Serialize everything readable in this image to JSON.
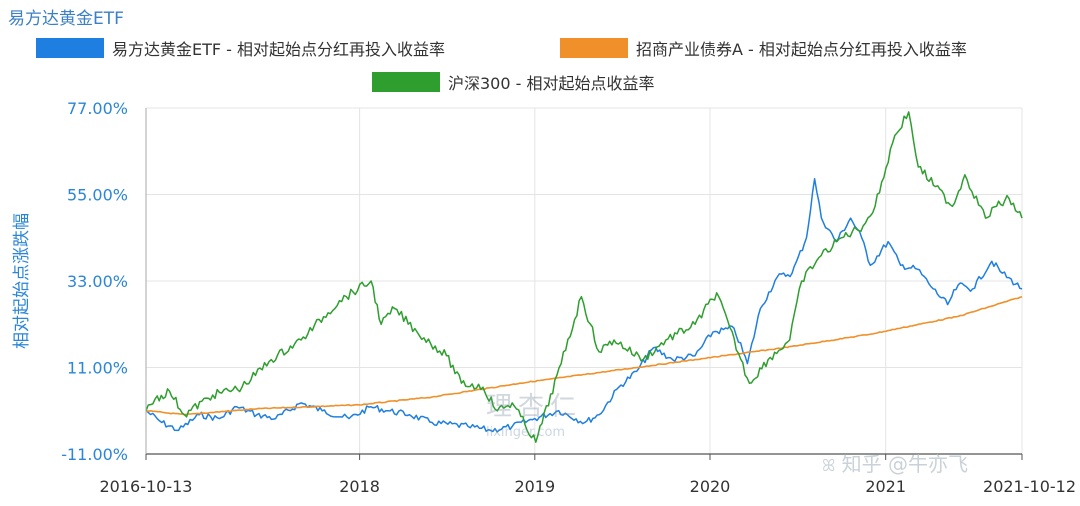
{
  "chart_data": {
    "type": "line",
    "title": "易方达黄金ETF",
    "ylabel": "相对起始点涨跌幅",
    "xlabel": "",
    "x_start": "2016-10-13",
    "x_end": "2021-10-12",
    "x_ticks": [
      "2016-10-13",
      "2018",
      "2019",
      "2020",
      "2021",
      "2021-10-12"
    ],
    "y_ticks": [
      "77.00%",
      "55.00%",
      "33.00%",
      "11.00%",
      "-11.00%"
    ],
    "ylim": [
      -11,
      77
    ],
    "grid": true,
    "legend": "top-center",
    "series": [
      {
        "name": "易方达黄金ETF - 相对起始点分红再投入收益率",
        "color": "#1f7fe0",
        "points": [
          [
            "2016-10-13",
            0
          ],
          [
            "2016-11-15",
            -3
          ],
          [
            "2016-12-20",
            -5
          ],
          [
            "2017-02-01",
            -1
          ],
          [
            "2017-03-15",
            -2
          ],
          [
            "2017-04-20",
            1
          ],
          [
            "2017-06-01",
            -1
          ],
          [
            "2017-07-10",
            -2
          ],
          [
            "2017-09-01",
            2
          ],
          [
            "2017-10-15",
            0
          ],
          [
            "2017-12-10",
            -2
          ],
          [
            "2018-01-25",
            1
          ],
          [
            "2018-03-01",
            0
          ],
          [
            "2018-04-15",
            -1
          ],
          [
            "2018-06-01",
            -3
          ],
          [
            "2018-08-15",
            -4
          ],
          [
            "2018-10-01",
            -5
          ],
          [
            "2018-11-15",
            -4
          ],
          [
            "2019-01-01",
            -2
          ],
          [
            "2019-02-20",
            0
          ],
          [
            "2019-04-15",
            -3
          ],
          [
            "2019-05-15",
            -1
          ],
          [
            "2019-06-25",
            6
          ],
          [
            "2019-08-01",
            10
          ],
          [
            "2019-09-05",
            16
          ],
          [
            "2019-10-15",
            13
          ],
          [
            "2019-12-01",
            14
          ],
          [
            "2020-01-07",
            20
          ],
          [
            "2020-02-20",
            21
          ],
          [
            "2020-03-19",
            12
          ],
          [
            "2020-04-15",
            26
          ],
          [
            "2020-05-20",
            34
          ],
          [
            "2020-06-20",
            35
          ],
          [
            "2020-07-20",
            44
          ],
          [
            "2020-08-06",
            59
          ],
          [
            "2020-08-20",
            49
          ],
          [
            "2020-09-20",
            43
          ],
          [
            "2020-10-20",
            49
          ],
          [
            "2020-11-12",
            44
          ],
          [
            "2020-11-30",
            37
          ],
          [
            "2021-01-06",
            43
          ],
          [
            "2021-02-01",
            37
          ],
          [
            "2021-03-08",
            36
          ],
          [
            "2021-04-10",
            31
          ],
          [
            "2021-05-10",
            27
          ],
          [
            "2021-06-01",
            32
          ],
          [
            "2021-07-01",
            31
          ],
          [
            "2021-08-10",
            38
          ],
          [
            "2021-09-01",
            35
          ],
          [
            "2021-10-12",
            31
          ]
        ]
      },
      {
        "name": "招商产业债券A - 相对起始点分红再投入收益率",
        "color": "#f0902a",
        "points": [
          [
            "2016-10-13",
            0
          ],
          [
            "2017-01-01",
            -1
          ],
          [
            "2017-06-01",
            0.5
          ],
          [
            "2018-01-01",
            1.5
          ],
          [
            "2018-06-01",
            3.5
          ],
          [
            "2018-12-01",
            7
          ],
          [
            "2019-06-01",
            10
          ],
          [
            "2019-12-01",
            13
          ],
          [
            "2020-06-01",
            16
          ],
          [
            "2020-12-01",
            19.5
          ],
          [
            "2021-06-01",
            24
          ],
          [
            "2021-10-12",
            29
          ]
        ]
      },
      {
        "name": "沪深300 - 相对起始点收益率",
        "color": "#2e9e2e",
        "points": [
          [
            "2016-10-13",
            0
          ],
          [
            "2016-11-01",
            3
          ],
          [
            "2016-12-01",
            5
          ],
          [
            "2017-01-01",
            -1
          ],
          [
            "2017-03-01",
            4
          ],
          [
            "2017-05-01",
            6
          ],
          [
            "2017-07-01",
            13
          ],
          [
            "2017-09-01",
            18
          ],
          [
            "2017-11-20",
            28
          ],
          [
            "2018-01-25",
            33
          ],
          [
            "2018-02-15",
            22
          ],
          [
            "2018-03-15",
            26
          ],
          [
            "2018-05-01",
            20
          ],
          [
            "2018-07-01",
            14
          ],
          [
            "2018-08-01",
            7
          ],
          [
            "2018-09-15",
            6
          ],
          [
            "2018-10-15",
            0
          ],
          [
            "2018-11-15",
            2
          ],
          [
            "2019-01-03",
            -8
          ],
          [
            "2019-02-25",
            12
          ],
          [
            "2019-04-08",
            29
          ],
          [
            "2019-05-15",
            15
          ],
          [
            "2019-06-15",
            18
          ],
          [
            "2019-08-15",
            13
          ],
          [
            "2019-10-01",
            18
          ],
          [
            "2019-12-01",
            22
          ],
          [
            "2020-01-15",
            30
          ],
          [
            "2020-03-23",
            7
          ],
          [
            "2020-05-01",
            13
          ],
          [
            "2020-06-15",
            18
          ],
          [
            "2020-07-10",
            33
          ],
          [
            "2020-08-15",
            39
          ],
          [
            "2020-10-01",
            44
          ],
          [
            "2020-11-15",
            47
          ],
          [
            "2020-12-10",
            52
          ],
          [
            "2021-01-20",
            70
          ],
          [
            "2021-02-18",
            76
          ],
          [
            "2021-03-10",
            62
          ],
          [
            "2021-04-15",
            57
          ],
          [
            "2021-05-20",
            52
          ],
          [
            "2021-06-15",
            60
          ],
          [
            "2021-07-28",
            49
          ],
          [
            "2021-08-20",
            52
          ],
          [
            "2021-09-15",
            54
          ],
          [
            "2021-10-12",
            49
          ]
        ]
      }
    ]
  },
  "watermarks": {
    "zhihu": "知乎 @牛亦飞",
    "licai": "理杏仁",
    "licai_url": "lixinger.com"
  }
}
